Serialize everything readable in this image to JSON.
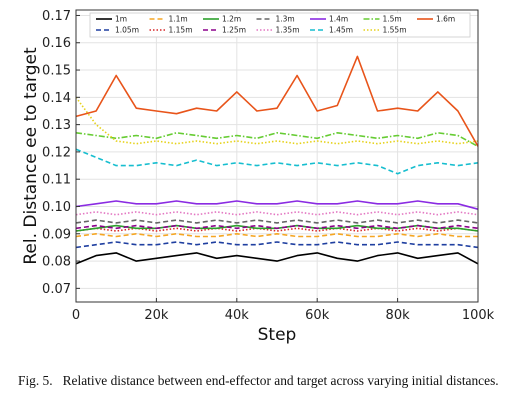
{
  "caption": {
    "label": "Fig. 5.",
    "text": "Relative distance between end-effector and target across varying initial distances."
  },
  "chart_data": {
    "type": "line",
    "title": "",
    "xlabel": "Step",
    "ylabel": "Rel. Distance ee to target",
    "xlim": [
      0,
      100000
    ],
    "ylim": [
      0.065,
      0.172
    ],
    "x_ticks": [
      0,
      20000,
      40000,
      60000,
      80000,
      100000
    ],
    "x_tick_labels": [
      "0",
      "20k",
      "40k",
      "60k",
      "80k",
      "100k"
    ],
    "y_ticks": [
      0.07,
      0.08,
      0.09,
      0.1,
      0.11,
      0.12,
      0.13,
      0.14,
      0.15,
      0.16,
      0.17
    ],
    "y_tick_labels": [
      "0.07",
      "0.08",
      "0.09",
      "0.10",
      "0.11",
      "0.12",
      "0.13",
      "0.14",
      "0.15",
      "0.16",
      "0.17"
    ],
    "grid": true,
    "legend_position": "top",
    "legend_columns": 7,
    "x": [
      0,
      5000,
      10000,
      15000,
      20000,
      25000,
      30000,
      35000,
      40000,
      45000,
      50000,
      55000,
      60000,
      65000,
      70000,
      75000,
      80000,
      85000,
      90000,
      95000,
      100000
    ],
    "series": [
      {
        "name": "1m",
        "color": "#000000",
        "dash": "solid",
        "values": [
          0.079,
          0.082,
          0.083,
          0.08,
          0.081,
          0.082,
          0.083,
          0.081,
          0.082,
          0.081,
          0.08,
          0.082,
          0.083,
          0.081,
          0.08,
          0.082,
          0.083,
          0.081,
          0.082,
          0.083,
          0.079
        ]
      },
      {
        "name": "1.05m",
        "color": "#1f3fa0",
        "dash": "dashed",
        "values": [
          0.085,
          0.086,
          0.087,
          0.086,
          0.086,
          0.087,
          0.086,
          0.087,
          0.086,
          0.086,
          0.087,
          0.086,
          0.086,
          0.087,
          0.086,
          0.086,
          0.087,
          0.086,
          0.086,
          0.086,
          0.085
        ]
      },
      {
        "name": "1.1m",
        "color": "#f5a623",
        "dash": "dashed",
        "values": [
          0.089,
          0.09,
          0.089,
          0.09,
          0.089,
          0.09,
          0.089,
          0.089,
          0.09,
          0.089,
          0.09,
          0.089,
          0.089,
          0.09,
          0.089,
          0.089,
          0.09,
          0.089,
          0.09,
          0.089,
          0.089
        ]
      },
      {
        "name": "1.15m",
        "color": "#d62728",
        "dash": "dotted",
        "values": [
          0.091,
          0.092,
          0.091,
          0.092,
          0.091,
          0.092,
          0.091,
          0.092,
          0.091,
          0.092,
          0.091,
          0.092,
          0.091,
          0.092,
          0.091,
          0.092,
          0.091,
          0.092,
          0.091,
          0.092,
          0.091
        ]
      },
      {
        "name": "1.2m",
        "color": "#2ca02c",
        "dash": "solid",
        "values": [
          0.091,
          0.092,
          0.093,
          0.092,
          0.092,
          0.093,
          0.092,
          0.092,
          0.093,
          0.092,
          0.092,
          0.093,
          0.092,
          0.092,
          0.093,
          0.092,
          0.092,
          0.093,
          0.092,
          0.092,
          0.091
        ]
      },
      {
        "name": "1.25m",
        "color": "#8b008b",
        "dash": "dashed",
        "values": [
          0.092,
          0.093,
          0.092,
          0.093,
          0.092,
          0.093,
          0.092,
          0.093,
          0.092,
          0.093,
          0.092,
          0.093,
          0.092,
          0.093,
          0.092,
          0.093,
          0.092,
          0.093,
          0.092,
          0.093,
          0.092
        ]
      },
      {
        "name": "1.3m",
        "color": "#666666",
        "dash": "dashed",
        "values": [
          0.094,
          0.095,
          0.094,
          0.095,
          0.094,
          0.095,
          0.094,
          0.095,
          0.094,
          0.095,
          0.094,
          0.095,
          0.094,
          0.095,
          0.094,
          0.095,
          0.094,
          0.095,
          0.094,
          0.095,
          0.094
        ]
      },
      {
        "name": "1.35m",
        "color": "#e377c2",
        "dash": "dotted",
        "values": [
          0.097,
          0.098,
          0.097,
          0.098,
          0.097,
          0.098,
          0.097,
          0.098,
          0.097,
          0.098,
          0.097,
          0.098,
          0.097,
          0.098,
          0.097,
          0.098,
          0.097,
          0.098,
          0.097,
          0.098,
          0.097
        ]
      },
      {
        "name": "1.4m",
        "color": "#8a2be2",
        "dash": "solid",
        "values": [
          0.1,
          0.101,
          0.102,
          0.101,
          0.101,
          0.102,
          0.101,
          0.101,
          0.102,
          0.101,
          0.101,
          0.102,
          0.101,
          0.101,
          0.102,
          0.101,
          0.101,
          0.102,
          0.101,
          0.101,
          0.099
        ]
      },
      {
        "name": "1.45m",
        "color": "#17becf",
        "dash": "dashed",
        "values": [
          0.121,
          0.118,
          0.115,
          0.115,
          0.116,
          0.115,
          0.117,
          0.115,
          0.116,
          0.115,
          0.116,
          0.115,
          0.116,
          0.115,
          0.116,
          0.115,
          0.112,
          0.115,
          0.116,
          0.115,
          0.116
        ]
      },
      {
        "name": "1.5m",
        "color": "#66cc33",
        "dash": "dashdot",
        "values": [
          0.127,
          0.126,
          0.125,
          0.126,
          0.125,
          0.127,
          0.126,
          0.125,
          0.126,
          0.125,
          0.127,
          0.126,
          0.125,
          0.127,
          0.126,
          0.125,
          0.126,
          0.125,
          0.127,
          0.126,
          0.122
        ]
      },
      {
        "name": "1.55m",
        "color": "#e6d21a",
        "dash": "dotted",
        "values": [
          0.14,
          0.13,
          0.124,
          0.123,
          0.124,
          0.123,
          0.124,
          0.123,
          0.124,
          0.123,
          0.124,
          0.123,
          0.124,
          0.123,
          0.124,
          0.123,
          0.124,
          0.123,
          0.124,
          0.123,
          0.124
        ]
      },
      {
        "name": "1.6m",
        "color": "#e8541a",
        "dash": "solid",
        "values": [
          0.133,
          0.135,
          0.148,
          0.136,
          0.135,
          0.134,
          0.136,
          0.135,
          0.142,
          0.135,
          0.136,
          0.148,
          0.135,
          0.137,
          0.155,
          0.135,
          0.136,
          0.135,
          0.142,
          0.135,
          0.122
        ]
      }
    ]
  }
}
